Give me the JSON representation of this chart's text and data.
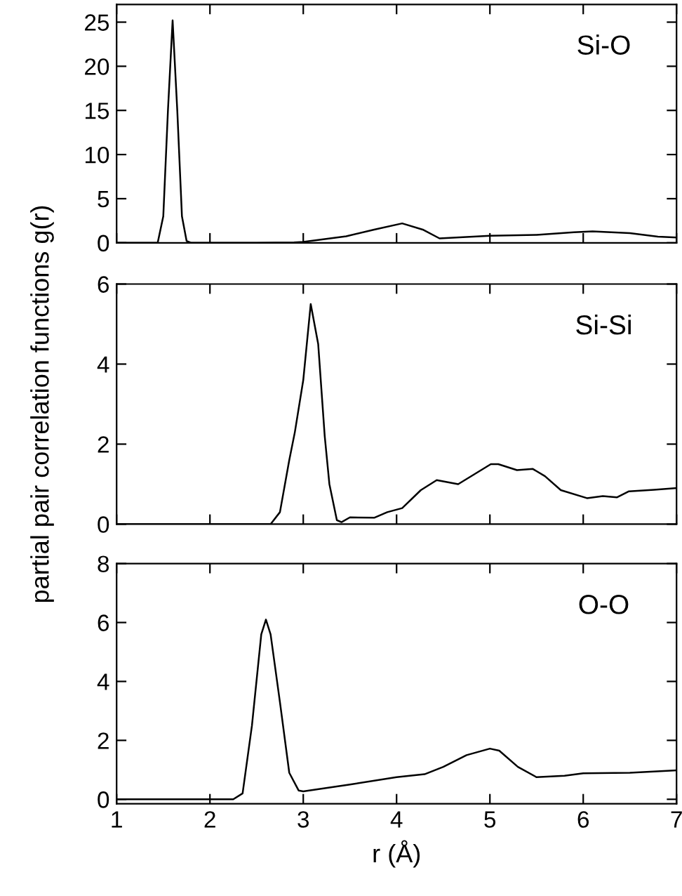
{
  "chart_data": [
    {
      "type": "line",
      "annotations": [
        "Si-O"
      ],
      "xlim": [
        1,
        7
      ],
      "xticks": [
        1,
        2,
        3,
        4,
        5,
        6,
        7
      ],
      "ylim": [
        0,
        27
      ],
      "yticks": [
        0,
        5,
        10,
        15,
        20,
        25
      ],
      "tick_labels": "y",
      "grid": false,
      "legend": false,
      "series": [
        {
          "color": "#000000",
          "x": [
            1.0,
            1.44,
            1.5,
            1.55,
            1.6,
            1.65,
            1.7,
            1.75,
            1.8,
            2.5,
            2.9,
            3.0,
            3.46,
            3.76,
            4.06,
            4.28,
            4.46,
            5.0,
            5.5,
            5.9,
            6.1,
            6.5,
            6.8,
            7.0
          ],
          "values": [
            0,
            0,
            3,
            15,
            25.2,
            15,
            3,
            0.2,
            0,
            0,
            0.05,
            0.1,
            0.74,
            1.5,
            2.2,
            1.5,
            0.5,
            0.8,
            0.9,
            1.2,
            1.3,
            1.1,
            0.7,
            0.6
          ]
        }
      ]
    },
    {
      "type": "line",
      "annotations": [
        "Si-Si"
      ],
      "ylabel": "partial pair correlation functions g(r)",
      "xlim": [
        1,
        7
      ],
      "xticks": [
        1,
        2,
        3,
        4,
        5,
        6,
        7
      ],
      "ylim": [
        0,
        6
      ],
      "yticks": [
        0,
        2,
        4,
        6
      ],
      "tick_labels": "y",
      "grid": false,
      "legend": false,
      "series": [
        {
          "color": "#000000",
          "x": [
            1.0,
            2.65,
            2.75,
            2.85,
            2.91,
            3.0,
            3.08,
            3.16,
            3.23,
            3.28,
            3.36,
            3.41,
            3.5,
            3.76,
            3.9,
            4.06,
            4.26,
            4.43,
            4.66,
            5.01,
            5.09,
            5.29,
            5.46,
            5.59,
            5.76,
            6.04,
            6.21,
            6.36,
            6.49,
            6.76,
            7.0
          ],
          "values": [
            0,
            0,
            0.3,
            1.6,
            2.3,
            3.6,
            5.5,
            4.5,
            2.2,
            1.0,
            0.1,
            0.05,
            0.17,
            0.16,
            0.3,
            0.4,
            0.85,
            1.1,
            1.0,
            1.5,
            1.5,
            1.35,
            1.38,
            1.2,
            0.85,
            0.65,
            0.7,
            0.67,
            0.82,
            0.86,
            0.9
          ]
        }
      ]
    },
    {
      "type": "line",
      "annotations": [
        "O-O"
      ],
      "xlabel": "r (Å)",
      "xlim": [
        1,
        7
      ],
      "xticks": [
        1,
        2,
        3,
        4,
        5,
        6,
        7
      ],
      "ylim": [
        -0.15,
        8
      ],
      "yticks": [
        0,
        2,
        4,
        6,
        8
      ],
      "grid": false,
      "legend": false,
      "series": [
        {
          "color": "#000000",
          "x": [
            1.0,
            2.25,
            2.35,
            2.45,
            2.55,
            2.6,
            2.65,
            2.75,
            2.85,
            2.95,
            3.0,
            3.5,
            4.0,
            4.3,
            4.5,
            4.75,
            5.0,
            5.1,
            5.3,
            5.5,
            5.8,
            6.0,
            6.5,
            7.0
          ],
          "values": [
            0,
            0,
            0.2,
            2.5,
            5.6,
            6.1,
            5.6,
            3.3,
            0.9,
            0.3,
            0.27,
            0.5,
            0.75,
            0.85,
            1.1,
            1.5,
            1.72,
            1.65,
            1.1,
            0.75,
            0.8,
            0.88,
            0.9,
            0.98
          ]
        }
      ]
    }
  ]
}
